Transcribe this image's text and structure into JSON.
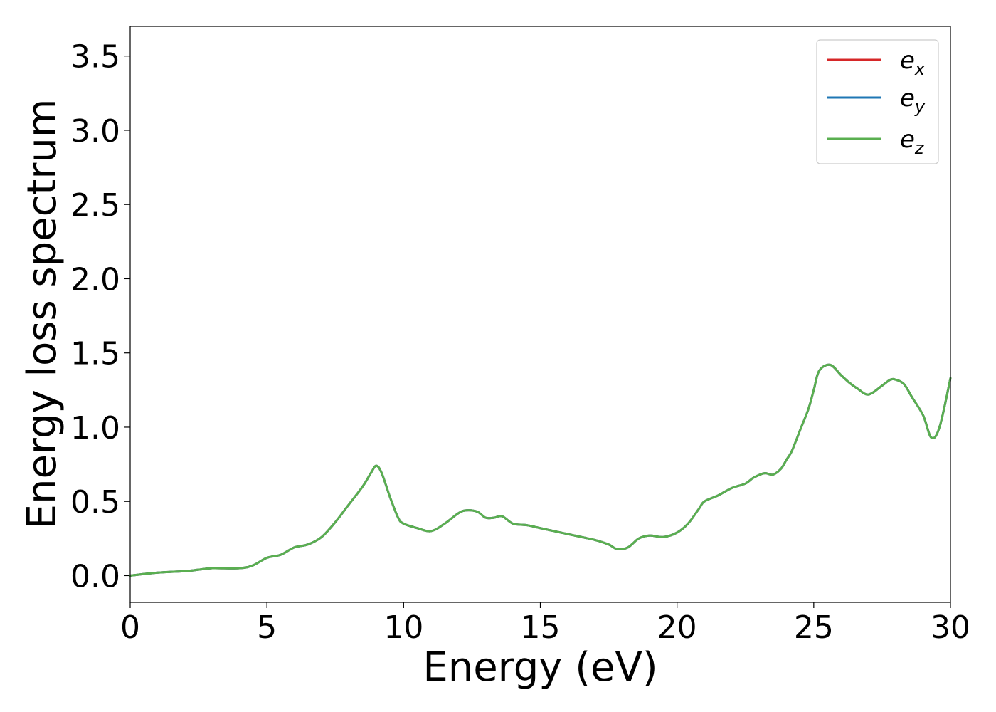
{
  "chart_data": {
    "type": "line",
    "xlabel": "Energy (eV)",
    "ylabel": "Energy loss spectrum",
    "xlim": [
      0,
      30
    ],
    "ylim": [
      -0.18,
      3.7
    ],
    "xticks": [
      0,
      5,
      10,
      15,
      20,
      25,
      30
    ],
    "xtick_labels": [
      "0",
      "5",
      "10",
      "15",
      "20",
      "25",
      "30"
    ],
    "yticks": [
      0.0,
      0.5,
      1.0,
      1.5,
      2.0,
      2.5,
      3.0,
      3.5
    ],
    "ytick_labels": [
      "0.0",
      "0.5",
      "1.0",
      "1.5",
      "2.0",
      "2.5",
      "3.0",
      "3.5"
    ],
    "grid": false,
    "legend_position": "top-right",
    "x": [
      0,
      1,
      2,
      2.5,
      3,
      4,
      4.5,
      5,
      5.5,
      6,
      6.5,
      7,
      7.5,
      8,
      8.5,
      8.8,
      9.0,
      9.2,
      9.5,
      9.8,
      10,
      10.5,
      11,
      11.5,
      12,
      12.3,
      12.7,
      13,
      13.3,
      13.6,
      14,
      14.5,
      15,
      16,
      16.5,
      17,
      17.5,
      17.8,
      18.2,
      18.6,
      19,
      19.5,
      20,
      20.4,
      20.8,
      21,
      21.5,
      22,
      22.5,
      22.8,
      23.2,
      23.5,
      23.8,
      24,
      24.2,
      24.5,
      24.8,
      25,
      25.2,
      25.6,
      26,
      26.3,
      26.6,
      27,
      27.5,
      27.8,
      28,
      28.3,
      28.6,
      29,
      29.3,
      29.6,
      30
    ],
    "series": [
      {
        "name": "e_x",
        "label_base": "e",
        "label_sub": "x",
        "color": "#d62728",
        "y": [
          0.0,
          0.02,
          0.03,
          0.04,
          0.05,
          0.05,
          0.07,
          0.12,
          0.14,
          0.19,
          0.21,
          0.26,
          0.36,
          0.48,
          0.6,
          0.69,
          0.74,
          0.69,
          0.53,
          0.39,
          0.35,
          0.32,
          0.3,
          0.35,
          0.42,
          0.44,
          0.43,
          0.39,
          0.39,
          0.4,
          0.35,
          0.34,
          0.32,
          0.28,
          0.26,
          0.24,
          0.21,
          0.18,
          0.19,
          0.25,
          0.27,
          0.26,
          0.29,
          0.35,
          0.45,
          0.5,
          0.54,
          0.59,
          0.62,
          0.66,
          0.69,
          0.68,
          0.72,
          0.78,
          0.84,
          0.98,
          1.12,
          1.25,
          1.38,
          1.42,
          1.35,
          1.3,
          1.26,
          1.22,
          1.28,
          1.32,
          1.32,
          1.29,
          1.2,
          1.08,
          0.93,
          1.0,
          1.33
        ]
      },
      {
        "name": "e_y",
        "label_base": "e",
        "label_sub": "y",
        "color": "#1f77b4",
        "y": [
          0.0,
          0.02,
          0.03,
          0.04,
          0.05,
          0.05,
          0.07,
          0.12,
          0.14,
          0.19,
          0.21,
          0.26,
          0.36,
          0.48,
          0.6,
          0.69,
          0.74,
          0.69,
          0.53,
          0.39,
          0.35,
          0.32,
          0.3,
          0.35,
          0.42,
          0.44,
          0.43,
          0.39,
          0.39,
          0.4,
          0.35,
          0.34,
          0.32,
          0.28,
          0.26,
          0.24,
          0.21,
          0.18,
          0.19,
          0.25,
          0.27,
          0.26,
          0.29,
          0.35,
          0.45,
          0.5,
          0.54,
          0.59,
          0.62,
          0.66,
          0.69,
          0.68,
          0.72,
          0.78,
          0.84,
          0.98,
          1.12,
          1.25,
          1.38,
          1.42,
          1.35,
          1.3,
          1.26,
          1.22,
          1.28,
          1.32,
          1.32,
          1.29,
          1.2,
          1.08,
          0.93,
          1.0,
          1.33
        ]
      },
      {
        "name": "e_z",
        "label_base": "e",
        "label_sub": "z",
        "color": "#5aaf50",
        "y": [
          0.0,
          0.02,
          0.03,
          0.04,
          0.05,
          0.05,
          0.07,
          0.12,
          0.14,
          0.19,
          0.21,
          0.26,
          0.36,
          0.48,
          0.6,
          0.69,
          0.74,
          0.69,
          0.53,
          0.39,
          0.35,
          0.32,
          0.3,
          0.35,
          0.42,
          0.44,
          0.43,
          0.39,
          0.39,
          0.4,
          0.35,
          0.34,
          0.32,
          0.28,
          0.26,
          0.24,
          0.21,
          0.18,
          0.19,
          0.25,
          0.27,
          0.26,
          0.29,
          0.35,
          0.45,
          0.5,
          0.54,
          0.59,
          0.62,
          0.66,
          0.69,
          0.68,
          0.72,
          0.78,
          0.84,
          0.98,
          1.12,
          1.25,
          1.38,
          1.42,
          1.35,
          1.3,
          1.26,
          1.22,
          1.28,
          1.32,
          1.32,
          1.29,
          1.2,
          1.08,
          0.93,
          1.0,
          1.33
        ]
      }
    ]
  }
}
